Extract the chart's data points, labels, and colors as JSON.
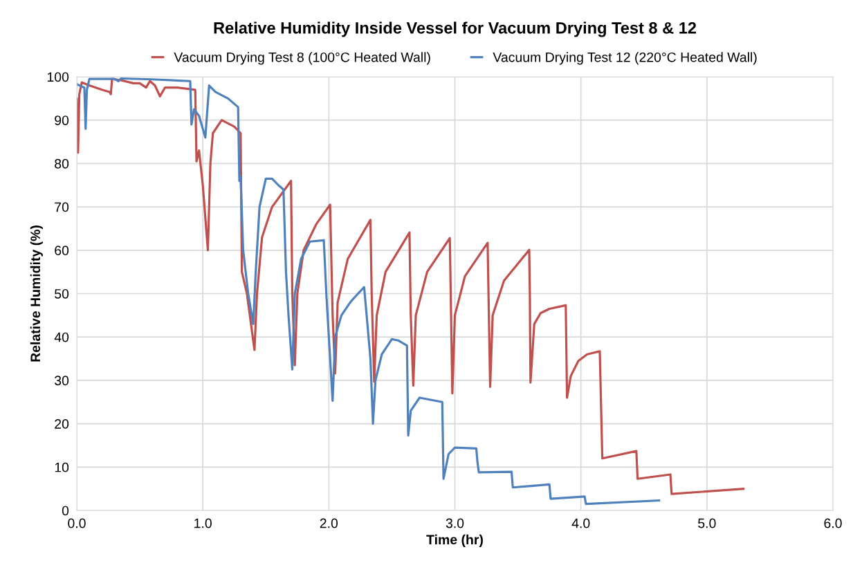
{
  "chart_data": {
    "type": "line",
    "title": "Relative Humidity Inside Vessel for Vacuum Drying Test 8 & 12",
    "xlabel": "Time (hr)",
    "ylabel": "Relative Humidity (%)",
    "xlim": [
      0,
      6
    ],
    "xticks": [
      {
        "value": 0,
        "label": "0.0"
      },
      {
        "value": 1,
        "label": "1.0"
      },
      {
        "value": 2,
        "label": "2.0"
      },
      {
        "value": 3,
        "label": "3.0"
      },
      {
        "value": 4,
        "label": "4.0"
      },
      {
        "value": 5,
        "label": "5.0"
      },
      {
        "value": 6,
        "label": "6.0"
      }
    ],
    "ylim": [
      0,
      100
    ],
    "yticks": [
      0,
      10,
      20,
      30,
      40,
      50,
      60,
      70,
      80,
      90,
      100
    ],
    "grid": true,
    "legend": "top",
    "marker": "none",
    "line_style": "solid",
    "series": [
      {
        "name": "Vacuum Drying Test 8 (100°C Heated Wall)",
        "color": "#c0504d",
        "x": [
          0.0,
          0.01,
          0.02,
          0.04,
          0.1,
          0.2,
          0.26,
          0.27,
          0.28,
          0.35,
          0.45,
          0.5,
          0.55,
          0.58,
          0.62,
          0.66,
          0.7,
          0.8,
          0.94,
          0.95,
          0.97,
          1.0,
          1.04,
          1.06,
          1.08,
          1.15,
          1.25,
          1.3,
          1.31,
          1.35,
          1.41,
          1.43,
          1.47,
          1.55,
          1.7,
          1.71,
          1.73,
          1.75,
          1.8,
          1.9,
          2.01,
          2.03,
          2.05,
          2.07,
          2.15,
          2.33,
          2.34,
          2.36,
          2.38,
          2.45,
          2.64,
          2.65,
          2.67,
          2.69,
          2.78,
          2.96,
          2.97,
          2.98,
          3.0,
          3.08,
          3.26,
          3.27,
          3.28,
          3.3,
          3.39,
          3.59,
          3.595,
          3.6,
          3.63,
          3.68,
          3.75,
          3.88,
          3.89,
          3.92,
          3.98,
          4.05,
          4.15,
          4.17,
          4.44,
          4.45,
          4.71,
          4.72,
          5.29
        ],
        "values": [
          95,
          82.5,
          96,
          98.7,
          98,
          97,
          96.5,
          96,
          99.5,
          99.2,
          98.5,
          98.5,
          97.5,
          99,
          98,
          95.5,
          97.5,
          97.5,
          97,
          80.5,
          83,
          75,
          60,
          80,
          87,
          90,
          88.5,
          87,
          55,
          50,
          37,
          50,
          63,
          70,
          76,
          50,
          33.5,
          50,
          60,
          66,
          70.5,
          45,
          31.6,
          48,
          58,
          67,
          50,
          29.7,
          45,
          55,
          64.1,
          45,
          28.8,
          45,
          55,
          62.8,
          45,
          27,
          45,
          54,
          61.7,
          45,
          28.5,
          45,
          53,
          60.1,
          50,
          29.5,
          43,
          45.5,
          46.5,
          47.3,
          26,
          31,
          34.5,
          36,
          36.7,
          12,
          13.7,
          7.3,
          8.3,
          3.8,
          5
        ]
      },
      {
        "name": "Vacuum Drying Test 12 (220°C Heated Wall)",
        "color": "#4f81bd",
        "x": [
          0,
          0.06,
          0.07,
          0.08,
          0.1,
          0.3,
          0.33,
          0.35,
          0.6,
          0.9,
          0.91,
          0.93,
          0.97,
          1.02,
          1.05,
          1.1,
          1.2,
          1.28,
          1.29,
          1.3,
          1.32,
          1.36,
          1.4,
          1.42,
          1.45,
          1.5,
          1.55,
          1.6,
          1.64,
          1.66,
          1.68,
          1.71,
          1.73,
          1.78,
          1.85,
          1.96,
          1.98,
          2.0,
          2.03,
          2.05,
          2.1,
          2.17,
          2.2,
          2.28,
          2.3,
          2.33,
          2.35,
          2.37,
          2.42,
          2.5,
          2.55,
          2.62,
          2.63,
          2.65,
          2.72,
          2.9,
          2.91,
          2.95,
          3.0,
          3.17,
          3.18,
          3.19,
          3.45,
          3.46,
          3.75,
          3.76,
          4.03,
          4.04,
          4.62
        ],
        "values": [
          98.3,
          97.5,
          88,
          97,
          99.5,
          99.5,
          99,
          99.6,
          99.4,
          99,
          89,
          92.5,
          91,
          86,
          98,
          96.5,
          95,
          93,
          76,
          77,
          60,
          50,
          43,
          55,
          70,
          76.5,
          76.5,
          75,
          74,
          55,
          45,
          32.5,
          50,
          58,
          62,
          62.3,
          50,
          40,
          25.3,
          40,
          45,
          48,
          49,
          51.5,
          45,
          35,
          20,
          30,
          36,
          39.5,
          39.2,
          38,
          17.3,
          23,
          26,
          25,
          7.3,
          13,
          14.5,
          14.3,
          11,
          8.8,
          8.9,
          5.3,
          6,
          2.7,
          3.2,
          1.5,
          2.3
        ]
      }
    ]
  }
}
